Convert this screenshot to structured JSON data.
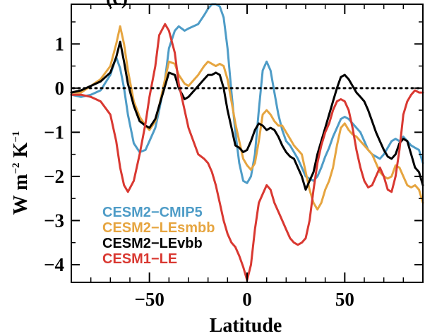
{
  "panel_label": "(c)",
  "chart_data": {
    "type": "line",
    "title": "",
    "xlabel": "Latitude",
    "ylabel_main": "W m",
    "ylabel_exp1": "−2",
    "ylabel_mid": " K",
    "ylabel_exp2": "−1",
    "xlim": [
      -90,
      90
    ],
    "ylim": [
      -4.4,
      1.9
    ],
    "xticks": [
      -50,
      0,
      50
    ],
    "xtick_labels": [
      "−50",
      "0",
      "50"
    ],
    "yticks": [
      -4,
      -3,
      -2,
      -1,
      0,
      1
    ],
    "ytick_labels": [
      "−4",
      "−3",
      "−2",
      "−1",
      "0",
      "1"
    ],
    "grid": false,
    "zero_line": "dotted",
    "legend_position": "bottom-left",
    "series": [
      {
        "name": "CESM2−CMIP5",
        "color": "#4e9cc7",
        "x": [
          -90,
          -85,
          -80,
          -75,
          -70,
          -67,
          -65,
          -63,
          -61,
          -58,
          -55,
          -52,
          -50,
          -47,
          -45,
          -42,
          -40,
          -37,
          -35,
          -32,
          -30,
          -25,
          -22,
          -20,
          -18,
          -16,
          -14,
          -12,
          -10,
          -8,
          -6,
          -4,
          -2,
          0,
          2,
          4,
          6,
          8,
          10,
          12,
          14,
          16,
          18,
          20,
          22,
          24,
          26,
          28,
          30,
          32,
          34,
          36,
          38,
          40,
          42,
          44,
          46,
          48,
          50,
          52,
          54,
          56,
          58,
          60,
          62,
          64,
          66,
          68,
          70,
          72,
          74,
          76,
          78,
          80,
          82,
          84,
          86,
          88,
          90
        ],
        "y": [
          -0.15,
          -0.2,
          -0.15,
          -0.05,
          0.3,
          0.7,
          0.45,
          0.0,
          -0.6,
          -1.25,
          -1.45,
          -1.4,
          -1.2,
          -0.9,
          -0.5,
          0.2,
          0.9,
          1.3,
          1.4,
          1.3,
          1.35,
          1.45,
          1.65,
          1.8,
          1.9,
          1.9,
          1.85,
          1.6,
          0.9,
          -0.1,
          -1.0,
          -1.7,
          -2.1,
          -2.15,
          -2.0,
          -1.5,
          -0.5,
          0.4,
          0.6,
          0.4,
          -0.1,
          -0.6,
          -0.95,
          -1.2,
          -1.3,
          -1.45,
          -1.6,
          -1.8,
          -2.0,
          -2.05,
          -2.1,
          -2.0,
          -1.8,
          -1.55,
          -1.35,
          -1.1,
          -0.9,
          -0.7,
          -0.65,
          -0.7,
          -0.8,
          -0.9,
          -1.0,
          -1.2,
          -1.4,
          -1.5,
          -1.55,
          -1.6,
          -1.5,
          -1.35,
          -1.2,
          -1.15,
          -1.2,
          -1.1,
          -1.2,
          -1.3,
          -1.35,
          -1.4,
          -1.7
        ]
      },
      {
        "name": "CESM2−LEsmbb",
        "color": "#e6a540",
        "x": [
          -90,
          -85,
          -80,
          -75,
          -70,
          -67,
          -65,
          -63,
          -61,
          -58,
          -55,
          -52,
          -50,
          -47,
          -45,
          -42,
          -40,
          -37,
          -35,
          -32,
          -30,
          -25,
          -22,
          -20,
          -18,
          -16,
          -14,
          -12,
          -10,
          -8,
          -6,
          -4,
          -2,
          0,
          2,
          4,
          6,
          8,
          10,
          12,
          14,
          16,
          18,
          20,
          22,
          24,
          26,
          28,
          30,
          32,
          34,
          36,
          38,
          40,
          42,
          44,
          46,
          48,
          50,
          52,
          54,
          56,
          58,
          60,
          62,
          64,
          66,
          68,
          70,
          72,
          74,
          76,
          78,
          80,
          82,
          84,
          86,
          88,
          90
        ],
        "y": [
          -0.1,
          -0.1,
          0.05,
          0.2,
          0.5,
          1.0,
          1.4,
          1.0,
          0.4,
          -0.3,
          -0.65,
          -0.85,
          -0.95,
          -0.75,
          -0.4,
          0.2,
          0.6,
          0.55,
          0.3,
          0.1,
          0.05,
          0.3,
          0.5,
          0.6,
          0.55,
          0.5,
          0.55,
          0.5,
          0.2,
          -0.3,
          -0.8,
          -1.2,
          -1.6,
          -1.75,
          -1.85,
          -1.7,
          -1.2,
          -0.6,
          -0.5,
          -0.6,
          -0.75,
          -0.85,
          -0.85,
          -1.0,
          -1.15,
          -1.3,
          -1.4,
          -1.5,
          -1.9,
          -2.3,
          -2.6,
          -2.75,
          -2.6,
          -2.3,
          -2.1,
          -1.8,
          -1.3,
          -0.9,
          -0.8,
          -0.95,
          -1.05,
          -1.1,
          -1.2,
          -1.3,
          -1.4,
          -1.5,
          -1.7,
          -1.9,
          -2.0,
          -2.05,
          -2.0,
          -1.75,
          -1.8,
          -2.0,
          -2.2,
          -2.25,
          -2.2,
          -2.3,
          -2.6
        ]
      },
      {
        "name": "CESM2−LEvbb",
        "color": "#000000",
        "x": [
          -90,
          -85,
          -80,
          -75,
          -70,
          -67,
          -65,
          -63,
          -61,
          -58,
          -55,
          -52,
          -50,
          -47,
          -45,
          -42,
          -40,
          -37,
          -35,
          -32,
          -30,
          -25,
          -22,
          -20,
          -18,
          -16,
          -14,
          -12,
          -10,
          -8,
          -6,
          -4,
          -2,
          0,
          2,
          4,
          6,
          8,
          10,
          12,
          14,
          16,
          18,
          20,
          22,
          24,
          26,
          28,
          30,
          32,
          34,
          36,
          38,
          40,
          42,
          44,
          46,
          48,
          50,
          52,
          54,
          56,
          58,
          60,
          62,
          64,
          66,
          68,
          70,
          72,
          74,
          76,
          78,
          80,
          82,
          84,
          86,
          88,
          90
        ],
        "y": [
          -0.1,
          -0.05,
          0.05,
          0.15,
          0.35,
          0.7,
          1.05,
          0.6,
          0.1,
          -0.4,
          -0.75,
          -0.85,
          -0.9,
          -0.7,
          -0.4,
          0.05,
          0.35,
          0.3,
          0.0,
          -0.25,
          -0.2,
          0.05,
          0.2,
          0.3,
          0.3,
          0.35,
          0.3,
          0.0,
          -0.5,
          -0.9,
          -1.3,
          -1.35,
          -1.45,
          -1.4,
          -1.2,
          -0.95,
          -0.8,
          -0.85,
          -0.95,
          -0.9,
          -0.95,
          -1.1,
          -1.3,
          -1.45,
          -1.55,
          -1.6,
          -1.8,
          -2.0,
          -2.3,
          -2.1,
          -1.9,
          -1.5,
          -1.2,
          -0.9,
          -0.6,
          -0.3,
          0.0,
          0.25,
          0.3,
          0.2,
          0.05,
          -0.1,
          -0.2,
          -0.3,
          -0.5,
          -0.75,
          -1.0,
          -1.2,
          -1.4,
          -1.55,
          -1.6,
          -1.5,
          -1.25,
          -1.15,
          -1.2,
          -1.5,
          -1.8,
          -1.9,
          -2.2
        ]
      },
      {
        "name": "CESM1−LE",
        "color": "#d93831",
        "x": [
          -90,
          -85,
          -80,
          -75,
          -70,
          -67,
          -65,
          -63,
          -61,
          -58,
          -55,
          -52,
          -50,
          -47,
          -45,
          -42,
          -40,
          -37,
          -35,
          -32,
          -30,
          -25,
          -22,
          -20,
          -18,
          -16,
          -14,
          -12,
          -10,
          -8,
          -6,
          -4,
          -2,
          0,
          2,
          4,
          6,
          8,
          10,
          12,
          14,
          16,
          18,
          20,
          22,
          24,
          26,
          28,
          30,
          32,
          34,
          36,
          38,
          40,
          42,
          44,
          46,
          48,
          50,
          52,
          54,
          56,
          58,
          60,
          62,
          64,
          66,
          68,
          70,
          72,
          74,
          76,
          78,
          80,
          82,
          84,
          86,
          88,
          90
        ],
        "y": [
          -0.15,
          -0.15,
          -0.2,
          -0.3,
          -0.6,
          -1.2,
          -1.8,
          -2.2,
          -2.35,
          -2.1,
          -1.5,
          -0.8,
          -0.2,
          0.5,
          1.2,
          1.45,
          1.3,
          0.8,
          0.1,
          -0.5,
          -0.9,
          -1.5,
          -1.6,
          -1.7,
          -1.9,
          -2.2,
          -2.6,
          -3.0,
          -3.3,
          -3.5,
          -3.6,
          -3.8,
          -4.05,
          -4.35,
          -4.0,
          -3.2,
          -2.6,
          -2.4,
          -2.2,
          -2.3,
          -2.6,
          -2.8,
          -3.0,
          -3.2,
          -3.4,
          -3.5,
          -3.55,
          -3.5,
          -3.4,
          -3.0,
          -2.3,
          -1.7,
          -1.3,
          -1.0,
          -0.8,
          -0.5,
          -0.3,
          -0.25,
          -0.3,
          -0.5,
          -0.9,
          -1.4,
          -1.8,
          -2.1,
          -2.25,
          -2.2,
          -2.0,
          -1.8,
          -2.0,
          -2.3,
          -2.35,
          -2.0,
          -1.4,
          -0.6,
          -0.3,
          -0.15,
          -0.05,
          -0.1,
          -0.1
        ]
      }
    ]
  }
}
